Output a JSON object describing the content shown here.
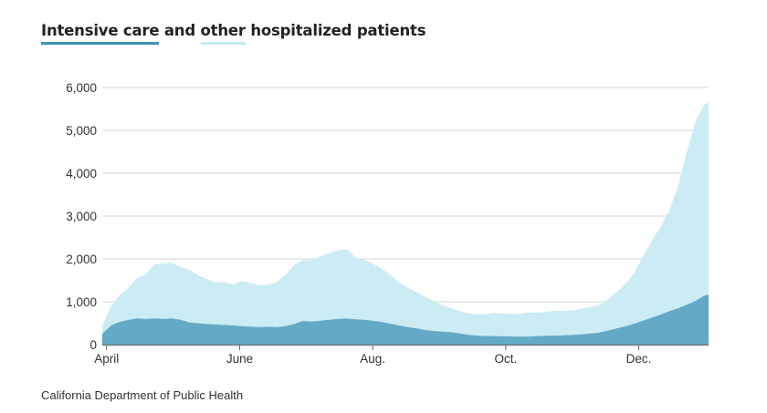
{
  "title": {
    "icu_label": "Intensive care",
    "and_word": "and",
    "other_label": "other",
    "rest": "hospitalized patients"
  },
  "source": "California Department of Public Health",
  "colors": {
    "icu": "#64a9c5",
    "other": "#cbecf4",
    "icu_key": "#3a92b0",
    "other_key": "#c4ebf5",
    "grid": "#d6d6d6",
    "axis": "#666666"
  },
  "chart_data": {
    "type": "area",
    "stacked": true,
    "title": "Intensive care and other hospitalized patients",
    "xlabel": "",
    "ylabel": "",
    "ylim": [
      0,
      6000
    ],
    "yticks": [
      {
        "value": 0,
        "label": "0"
      },
      {
        "value": 1000,
        "label": "1,000"
      },
      {
        "value": 2000,
        "label": "2,000"
      },
      {
        "value": 3000,
        "label": "3,000"
      },
      {
        "value": 4000,
        "label": "4,000"
      },
      {
        "value": 5000,
        "label": "5,000"
      },
      {
        "value": 6000,
        "label": "6,000"
      }
    ],
    "xlim_days": [
      0,
      278
    ],
    "xticks": [
      {
        "day": 2,
        "label": "April"
      },
      {
        "day": 63,
        "label": "June"
      },
      {
        "day": 124,
        "label": "Aug."
      },
      {
        "day": 185,
        "label": "Oct."
      },
      {
        "day": 246,
        "label": "Dec."
      }
    ],
    "grid": true,
    "legend": "title",
    "x_days": [
      0,
      4,
      8,
      12,
      16,
      20,
      24,
      28,
      32,
      36,
      40,
      44,
      48,
      52,
      56,
      60,
      64,
      68,
      72,
      76,
      80,
      84,
      88,
      92,
      96,
      100,
      104,
      108,
      112,
      116,
      120,
      124,
      128,
      132,
      136,
      140,
      144,
      148,
      152,
      156,
      160,
      164,
      168,
      172,
      176,
      180,
      184,
      188,
      192,
      196,
      200,
      204,
      208,
      212,
      216,
      220,
      224,
      228,
      232,
      236,
      240,
      244,
      248,
      252,
      256,
      260,
      264,
      268,
      272,
      276,
      278
    ],
    "series": [
      {
        "name": "Intensive care",
        "values": [
          250,
          450,
          530,
          580,
          610,
          600,
          610,
          600,
          610,
          580,
          520,
          500,
          480,
          470,
          460,
          450,
          430,
          420,
          410,
          420,
          410,
          430,
          480,
          550,
          540,
          560,
          580,
          600,
          610,
          590,
          580,
          560,
          530,
          490,
          450,
          410,
          380,
          340,
          320,
          300,
          290,
          260,
          230,
          210,
          200,
          200,
          195,
          190,
          185,
          190,
          200,
          210,
          210,
          220,
          230,
          240,
          260,
          280,
          330,
          380,
          430,
          490,
          560,
          630,
          700,
          780,
          850,
          930,
          1020,
          1140,
          1170
        ]
      },
      {
        "name": "Other hospitalized",
        "values": [
          200,
          450,
          620,
          750,
          950,
          1050,
          1270,
          1300,
          1300,
          1230,
          1230,
          1120,
          1050,
          980,
          1000,
          950,
          1050,
          1020,
          970,
          980,
          1050,
          1200,
          1380,
          1420,
          1430,
          1500,
          1550,
          1600,
          1620,
          1450,
          1400,
          1330,
          1250,
          1150,
          1000,
          920,
          850,
          780,
          700,
          620,
          560,
          520,
          500,
          500,
          520,
          540,
          530,
          520,
          540,
          560,
          550,
          560,
          580,
          570,
          570,
          600,
          620,
          650,
          720,
          850,
          1000,
          1200,
          1500,
          1800,
          2050,
          2350,
          2850,
          3550,
          4200,
          4450,
          4500
        ]
      }
    ]
  }
}
